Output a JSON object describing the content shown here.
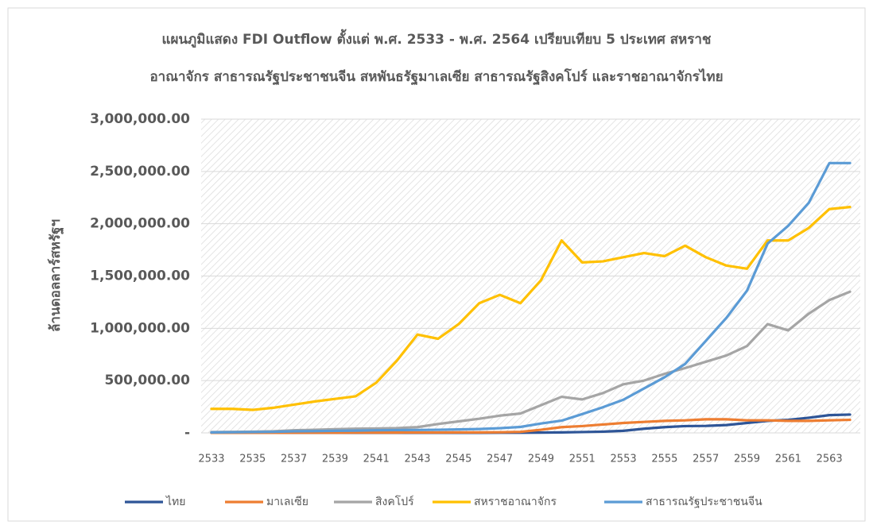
{
  "chart_data": {
    "type": "line",
    "title": [
      "แผนภูมิแสดง FDI Outflow ตั้งแต่ พ.ศ. 2533 - พ.ศ. 2564 เปรียบเทียบ 5 ประเทศ สหราช",
      "อาณาจักร สาธารณรัฐประชาชนจีน สหพันธรัฐมาเลเซีย สาธารณรัฐสิงคโปร์ และราชอาณาจักรไทย"
    ],
    "y_label": "ล้านดอลลาร์สหรัฐฯ",
    "categories": [
      "2533",
      null,
      "2535",
      null,
      "2537",
      null,
      "2539",
      null,
      "2541",
      null,
      "2543",
      null,
      "2545",
      null,
      "2547",
      null,
      "2549",
      null,
      "2551",
      null,
      "2553",
      null,
      "2555",
      null,
      "2557",
      null,
      "2559",
      null,
      "2561",
      null,
      "2563",
      null
    ],
    "series": [
      {
        "name": "ไทย",
        "color": "#2e5597",
        "values": [
          1000,
          1000,
          1000,
          1000,
          1000,
          1000,
          1000,
          1000,
          1000,
          1000,
          1000,
          1000,
          1000,
          1000,
          2000,
          2000,
          3000,
          5000,
          8000,
          12000,
          20000,
          40000,
          55000,
          65000,
          67000,
          75000,
          95000,
          115000,
          125000,
          145000,
          170000,
          175000
        ]
      },
      {
        "name": "มาเลเซีย",
        "color": "#ed7d31",
        "values": [
          1000,
          1000,
          1000,
          1000,
          2000,
          2000,
          2000,
          3000,
          3000,
          3000,
          4000,
          4000,
          5000,
          5000,
          6000,
          10000,
          30000,
          55000,
          65000,
          80000,
          95000,
          105000,
          115000,
          120000,
          130000,
          130000,
          120000,
          120000,
          115000,
          115000,
          120000,
          125000
        ]
      },
      {
        "name": "สิงคโปร์",
        "color": "#a5a5a5",
        "values": [
          8000,
          10000,
          12000,
          15000,
          25000,
          30000,
          35000,
          40000,
          42000,
          46000,
          55000,
          85000,
          110000,
          135000,
          165000,
          185000,
          265000,
          345000,
          320000,
          380000,
          465000,
          500000,
          565000,
          620000,
          680000,
          740000,
          830000,
          1040000,
          980000,
          1140000,
          1270000,
          1350000
        ]
      },
      {
        "name": "สหราชอาณาจักร",
        "color": "#ffc000",
        "values": [
          230000,
          230000,
          220000,
          240000,
          270000,
          300000,
          325000,
          350000,
          480000,
          690000,
          940000,
          900000,
          1040000,
          1240000,
          1320000,
          1240000,
          1460000,
          1840000,
          1630000,
          1640000,
          1680000,
          1720000,
          1690000,
          1790000,
          1680000,
          1600000,
          1570000,
          1840000,
          1840000,
          1960000,
          2140000,
          2160000
        ]
      },
      {
        "name": "สาธารณรัฐประชาชนจีน",
        "color": "#5b9bd5",
        "values": [
          5000,
          6000,
          8000,
          10000,
          15000,
          17000,
          20000,
          22000,
          25000,
          27000,
          28000,
          30000,
          33000,
          37000,
          45000,
          57000,
          90000,
          117000,
          180000,
          245000,
          317000,
          425000,
          532000,
          660000,
          880000,
          1100000,
          1360000,
          1810000,
          1980000,
          2200000,
          2580000,
          2580000
        ]
      }
    ],
    "ylim": [
      0,
      3000000
    ],
    "yticks": [
      {
        "value": 0,
        "label": "-"
      },
      {
        "value": 500000,
        "label": "500,000.00"
      },
      {
        "value": 1000000,
        "label": "1,000,000.00"
      },
      {
        "value": 1500000,
        "label": "1,500,000.00"
      },
      {
        "value": 2000000,
        "label": "2,000,000.00"
      },
      {
        "value": 2500000,
        "label": "2,500,000.00"
      },
      {
        "value": 3000000,
        "label": "3,000,000.00"
      }
    ],
    "grid": true,
    "legend": "bottom"
  }
}
